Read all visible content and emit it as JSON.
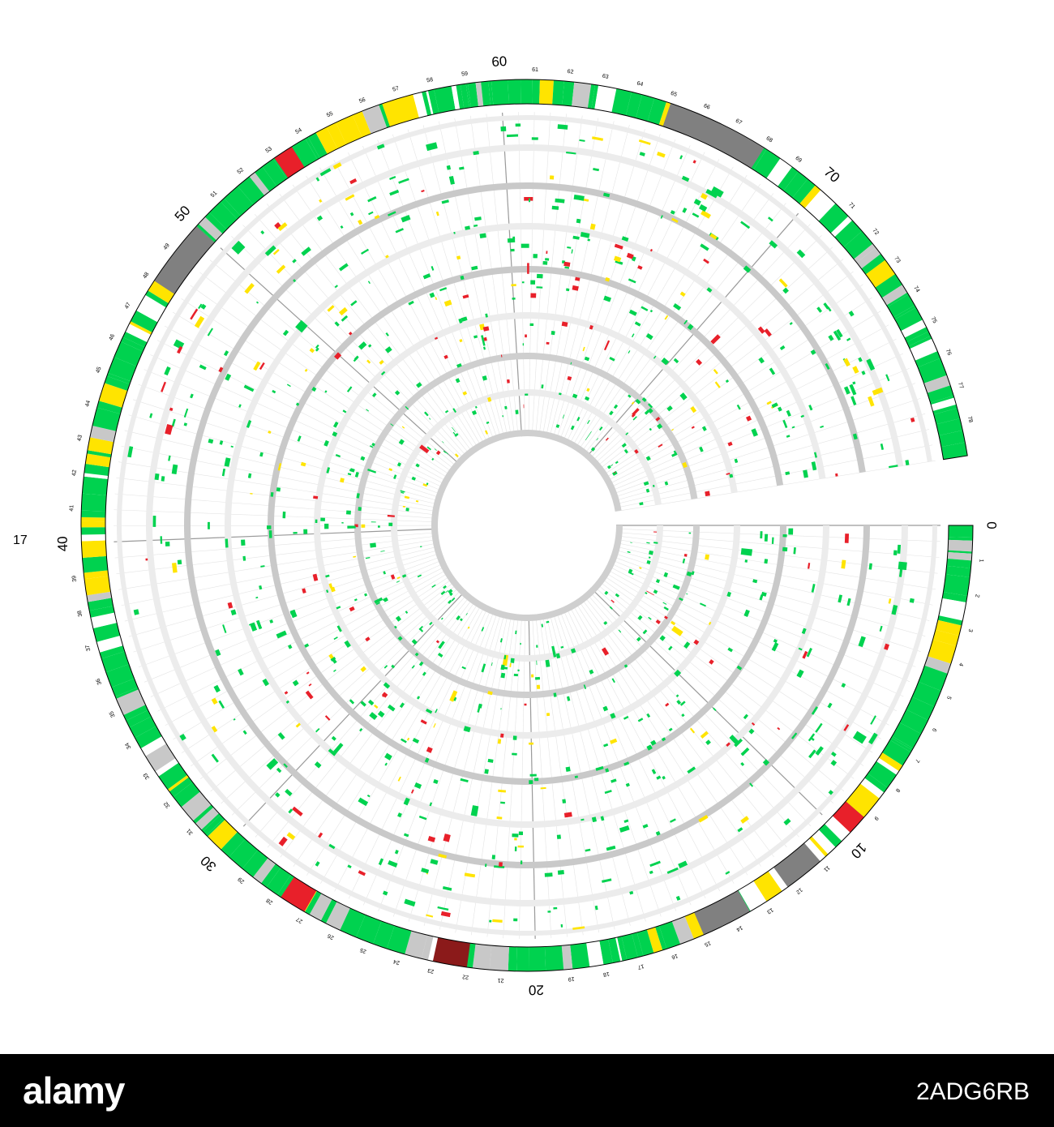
{
  "diagram": {
    "major_labels": [
      "0",
      "10",
      "20",
      "30",
      "40",
      "50",
      "60",
      "70"
    ],
    "minor_labels": [
      "1",
      "2",
      "3",
      "4",
      "5",
      "6",
      "7",
      "8",
      "9",
      "11",
      "12",
      "13",
      "14",
      "15",
      "16",
      "17",
      "18",
      "19",
      "21",
      "22",
      "23",
      "24",
      "25",
      "26",
      "27",
      "28",
      "29",
      "31",
      "32",
      "33",
      "34",
      "35",
      "36",
      "37",
      "38",
      "39",
      "41",
      "42",
      "43",
      "44",
      "45",
      "46",
      "47",
      "48",
      "49",
      "51",
      "52",
      "53",
      "54",
      "55",
      "56",
      "57",
      "58",
      "59",
      "61",
      "62",
      "63",
      "64",
      "65",
      "66",
      "67",
      "68",
      "69",
      "71",
      "72",
      "73",
      "74",
      "75",
      "76",
      "77",
      "78"
    ],
    "side_label": "17",
    "colors": {
      "green": "#00d24f",
      "yellow": "#ffe400",
      "grey": "#808080",
      "light_grey": "#c8c8c8",
      "red": "#e8202a",
      "dark_red": "#8b1a1a"
    }
  },
  "watermark": {
    "logo_text": "alamy",
    "image_id": "2ADG6RB"
  }
}
